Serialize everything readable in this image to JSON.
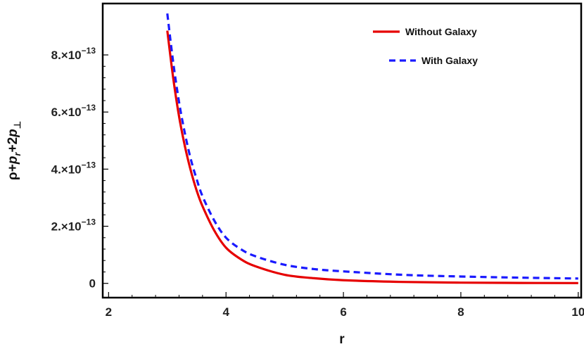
{
  "chart_data": {
    "type": "line",
    "title": "",
    "xlabel": "r",
    "ylabel": "ρ+p_r+2p_⊥",
    "xlim": [
      1.9,
      10.05
    ],
    "ylim": [
      -5e-14,
      9.8e-13
    ],
    "x_ticks": [
      {
        "value": 2,
        "label": "2"
      },
      {
        "value": 4,
        "label": "4"
      },
      {
        "value": 6,
        "label": "6"
      },
      {
        "value": 8,
        "label": "8"
      },
      {
        "value": 10,
        "label": "10"
      }
    ],
    "y_ticks": [
      {
        "value": 0,
        "label": "0"
      },
      {
        "value": 2e-13,
        "label": "2.×10",
        "exp": "−13"
      },
      {
        "value": 4e-13,
        "label": "4.×10",
        "exp": "−13"
      },
      {
        "value": 6e-13,
        "label": "6.×10",
        "exp": "−13"
      },
      {
        "value": 8e-13,
        "label": "8.×10",
        "exp": "−13"
      }
    ],
    "legend_position": "top-right",
    "series": [
      {
        "name": "Without Galaxy",
        "color": "#e60000",
        "dash": "solid",
        "x": [
          3.0,
          3.1,
          3.2,
          3.3,
          3.4,
          3.5,
          3.6,
          3.8,
          4.0,
          4.25,
          4.5,
          5.0,
          5.5,
          6.0,
          7.0,
          8.0,
          9.0,
          10.0
        ],
        "y": [
          8.85e-13,
          7.2e-13,
          5.85e-13,
          4.8e-13,
          3.95e-13,
          3.25e-13,
          2.7e-13,
          1.85e-13,
          1.25e-13,
          8.5e-14,
          6e-14,
          3e-14,
          1.8e-14,
          1.1e-14,
          5e-15,
          2.5e-15,
          1.5e-15,
          1e-15
        ]
      },
      {
        "name": "With Galaxy",
        "color": "#1a1aff",
        "dash": "dashed",
        "x": [
          3.0,
          3.1,
          3.2,
          3.3,
          3.4,
          3.5,
          3.6,
          3.8,
          4.0,
          4.25,
          4.5,
          5.0,
          5.5,
          6.0,
          7.0,
          8.0,
          9.0,
          10.0
        ],
        "y": [
          9.45e-13,
          7.75e-13,
          6.35e-13,
          5.25e-13,
          4.35e-13,
          3.65e-13,
          3.05e-13,
          2.2e-13,
          1.6e-13,
          1.2e-13,
          9.5e-14,
          6.5e-14,
          5e-14,
          4.2e-14,
          3e-14,
          2.4e-14,
          2e-14,
          1.7e-14
        ]
      }
    ]
  }
}
